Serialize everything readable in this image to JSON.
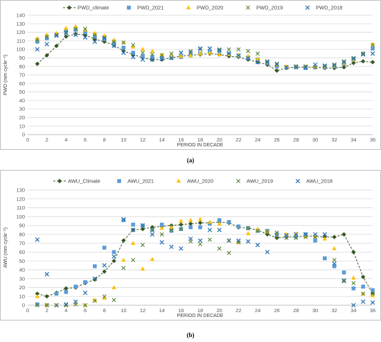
{
  "chart_data": [
    {
      "type": "scatter",
      "caption": "(a)",
      "xlabel": "PERIOD IN DECADE",
      "ylabel": "PWD (mm cycle⁻¹)",
      "xlim": [
        0,
        36
      ],
      "ylim": [
        0,
        140
      ],
      "xticks": [
        0,
        2,
        4,
        6,
        8,
        10,
        12,
        14,
        16,
        18,
        20,
        22,
        24,
        26,
        28,
        30,
        32,
        34,
        36
      ],
      "yticks": [
        0,
        10,
        20,
        30,
        40,
        50,
        60,
        70,
        80,
        90,
        100,
        110,
        120,
        130,
        140
      ],
      "grid": true,
      "legend_position": "top",
      "colors": {
        "climate": "#375623",
        "y2021": "#5b9bd5",
        "y2020": "#ffc000",
        "y2019": "#548235",
        "y2018": "#2e75b6"
      },
      "x": [
        1,
        2,
        3,
        4,
        5,
        6,
        7,
        8,
        9,
        10,
        11,
        12,
        13,
        14,
        15,
        16,
        17,
        18,
        19,
        20,
        21,
        22,
        23,
        24,
        25,
        26,
        27,
        28,
        29,
        30,
        31,
        32,
        33,
        34,
        35,
        36
      ],
      "series": [
        {
          "name": "PWD_climate",
          "style": "climate",
          "values": [
            83,
            93,
            104,
            115,
            118,
            117,
            112,
            109,
            105,
            98,
            94,
            90,
            88,
            88,
            90,
            92,
            93,
            94,
            95,
            94,
            92,
            91,
            88,
            85,
            82,
            75,
            78,
            79,
            79,
            79,
            78,
            78,
            79,
            84,
            86,
            85
          ]
        },
        {
          "name": "PWD_2021",
          "style": "square",
          "values": [
            109,
            113,
            117,
            122,
            123,
            120,
            115,
            112,
            107,
            102,
            96,
            92,
            91,
            90,
            90,
            91,
            93,
            95,
            97,
            98,
            95,
            92,
            90,
            88,
            84,
            80,
            79,
            79,
            78,
            79,
            79,
            80,
            83,
            88,
            95,
            101
          ]
        },
        {
          "name": "PWD_2020",
          "style": "triangle",
          "values": [
            113,
            117,
            119,
            125,
            127,
            123,
            119,
            116,
            111,
            108,
            103,
            100,
            98,
            94,
            92,
            92,
            93,
            95,
            96,
            94,
            94,
            93,
            92,
            89,
            85,
            82,
            80,
            80,
            80,
            80,
            80,
            81,
            84,
            88,
            95,
            106
          ]
        },
        {
          "name": "PWD_2019",
          "style": "x",
          "values": [
            111,
            115,
            117,
            120,
            124,
            124,
            117,
            114,
            109,
            108,
            105,
            96,
            94,
            93,
            95,
            96,
            98,
            100,
            101,
            100,
            100,
            100,
            98,
            95,
            86,
            82,
            79,
            79,
            80,
            79,
            80,
            81,
            86,
            90,
            95,
            105
          ]
        },
        {
          "name": "PWD_2018",
          "style": "star",
          "values": [
            100,
            106,
            116,
            119,
            117,
            114,
            109,
            113,
            104,
            96,
            91,
            88,
            88,
            89,
            90,
            96,
            96,
            101,
            101,
            99,
            95,
            93,
            90,
            85,
            85,
            83,
            79,
            80,
            79,
            82,
            81,
            82,
            85,
            89,
            94,
            95
          ]
        }
      ]
    },
    {
      "type": "scatter",
      "caption": "(b)",
      "xlabel": "PERIOD IN DECADE",
      "ylabel": "AWU (mm cycle⁻¹)",
      "xlim": [
        0,
        36
      ],
      "ylim": [
        0,
        130
      ],
      "xticks": [
        0,
        2,
        4,
        6,
        8,
        10,
        12,
        14,
        16,
        18,
        20,
        22,
        24,
        26,
        28,
        30,
        32,
        34,
        36
      ],
      "yticks": [
        0,
        10,
        20,
        30,
        40,
        50,
        60,
        70,
        80,
        90,
        100,
        110,
        120,
        130
      ],
      "grid": true,
      "legend_position": "top",
      "colors": {
        "climate": "#375623",
        "y2021": "#5b9bd5",
        "y2020": "#ffc000",
        "y2019": "#548235",
        "y2018": "#2e75b6"
      },
      "x": [
        1,
        2,
        3,
        4,
        5,
        6,
        7,
        8,
        9,
        10,
        11,
        12,
        13,
        14,
        15,
        16,
        17,
        18,
        19,
        20,
        21,
        22,
        23,
        24,
        25,
        26,
        27,
        28,
        29,
        30,
        31,
        32,
        33,
        34,
        35,
        36
      ],
      "series": [
        {
          "name": "AWU_Climate",
          "style": "climate",
          "values": [
            13,
            10,
            14,
            19,
            20,
            25,
            29,
            38,
            50,
            73,
            85,
            86,
            88,
            89,
            90,
            91,
            92,
            93,
            93,
            94,
            93,
            88,
            87,
            85,
            80,
            76,
            77,
            77,
            78,
            78,
            77,
            77,
            80,
            60,
            32,
            13
          ]
        },
        {
          "name": "AWU_2021",
          "style": "square",
          "values": [
            1,
            0,
            13,
            15,
            21,
            26,
            44,
            65,
            60,
            96,
            91,
            90,
            85,
            91,
            84,
            86,
            88,
            88,
            92,
            96,
            94,
            89,
            87,
            84,
            84,
            80,
            79,
            78,
            80,
            73,
            53,
            44,
            37,
            19,
            21,
            17
          ]
        },
        {
          "name": "AWU_2020",
          "style": "triangle",
          "values": [
            10,
            0,
            0,
            0,
            3,
            0,
            6,
            8,
            20,
            51,
            70,
            41,
            52,
            87,
            88,
            95,
            96,
            97,
            94,
            92,
            73,
            71,
            81,
            86,
            83,
            79,
            80,
            81,
            78,
            78,
            75,
            64,
            28,
            31,
            13,
            11
          ]
        },
        {
          "name": "AWU_2019",
          "style": "x",
          "values": [
            0,
            0,
            0,
            0,
            1,
            0,
            5,
            10,
            6,
            42,
            51,
            68,
            85,
            80,
            85,
            86,
            72,
            69,
            74,
            64,
            59,
            71,
            87,
            84,
            83,
            82,
            76,
            76,
            77,
            77,
            80,
            51,
            27,
            25,
            13,
            13
          ]
        },
        {
          "name": "AWU_2018",
          "style": "star",
          "values": [
            74,
            35,
            0,
            1,
            4,
            14,
            30,
            45,
            55,
            97,
            85,
            90,
            80,
            71,
            66,
            64,
            75,
            73,
            85,
            85,
            73,
            73,
            72,
            68,
            60,
            79,
            79,
            80,
            80,
            80,
            80,
            47,
            28,
            0,
            4,
            3
          ]
        }
      ]
    }
  ]
}
